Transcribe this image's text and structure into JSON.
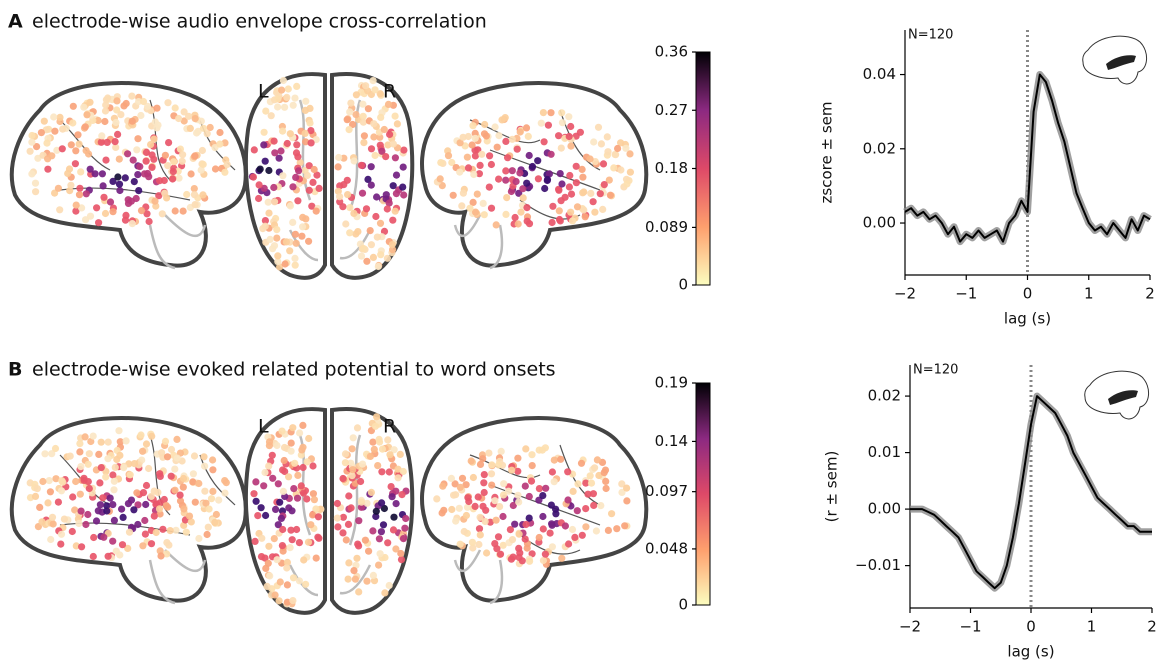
{
  "figure": {
    "panels": [
      {
        "letter": "A",
        "title": "electrode-wise audio envelope cross-correlation",
        "hemisphere_labels": [
          "L",
          "R"
        ],
        "colorbar": {
          "lim": [
            0,
            0.36
          ],
          "ticks": [
            0,
            0.089,
            0.18,
            0.27,
            0.36
          ]
        }
      },
      {
        "letter": "B",
        "title": "electrode-wise evoked related potential to word onsets",
        "hemisphere_labels": [
          "L",
          "R"
        ],
        "colorbar": {
          "lim": [
            0,
            0.19
          ],
          "ticks": [
            0,
            0.048,
            0.097,
            0.14,
            0.19
          ]
        }
      }
    ]
  },
  "chart_data": [
    {
      "type": "line",
      "annotation": "N=120",
      "xlabel": "lag (s)",
      "ylabel": "zscore ± sem",
      "color": "#000000",
      "x": [
        -2,
        -1.9,
        -1.8,
        -1.7,
        -1.6,
        -1.5,
        -1.4,
        -1.3,
        -1.2,
        -1.1,
        -1,
        -0.9,
        -0.8,
        -0.7,
        -0.6,
        -0.5,
        -0.4,
        -0.3,
        -0.2,
        -0.1,
        0,
        0.1,
        0.2,
        0.3,
        0.4,
        0.5,
        0.6,
        0.7,
        0.8,
        0.9,
        1,
        1.1,
        1.2,
        1.3,
        1.4,
        1.5,
        1.6,
        1.7,
        1.8,
        1.9,
        2
      ],
      "values": [
        0.003,
        0.004,
        0.002,
        0.003,
        0.001,
        0.002,
        0.0,
        -0.003,
        -0.001,
        -0.005,
        -0.003,
        -0.004,
        -0.002,
        -0.004,
        -0.003,
        -0.002,
        -0.005,
        0.0,
        0.002,
        0.006,
        0.003,
        0.03,
        0.04,
        0.038,
        0.033,
        0.027,
        0.022,
        0.015,
        0.008,
        0.004,
        0.0,
        -0.002,
        -0.001,
        -0.003,
        0.0,
        -0.002,
        -0.004,
        0.001,
        -0.002,
        0.002,
        0.001
      ],
      "xlim": [
        -2,
        2
      ],
      "ylim": [
        -0.014,
        0.052
      ],
      "xticks": [
        {
          "value": -2,
          "label": "−2"
        },
        {
          "value": -1,
          "label": "−1"
        },
        0,
        1,
        2
      ],
      "yticks": [
        {
          "value": 0,
          "label": "0.00"
        },
        {
          "value": 0.02,
          "label": "0.02"
        },
        {
          "value": 0.04,
          "label": "0.04"
        }
      ],
      "vlines": [
        0
      ]
    },
    {
      "type": "line",
      "annotation": "N=120",
      "xlabel": "lag (s)",
      "ylabel": "(r ± sem)",
      "color": "#000000",
      "x": [
        -2,
        -1.9,
        -1.8,
        -1.7,
        -1.6,
        -1.5,
        -1.4,
        -1.3,
        -1.2,
        -1.1,
        -1,
        -0.9,
        -0.8,
        -0.7,
        -0.6,
        -0.5,
        -0.4,
        -0.3,
        -0.2,
        -0.1,
        0,
        0.1,
        0.2,
        0.3,
        0.4,
        0.5,
        0.6,
        0.7,
        0.8,
        0.9,
        1,
        1.1,
        1.2,
        1.3,
        1.4,
        1.5,
        1.6,
        1.7,
        1.8,
        1.9,
        2
      ],
      "values": [
        0.0,
        0.0,
        0.0,
        -0.0005,
        -0.001,
        -0.002,
        -0.003,
        -0.004,
        -0.005,
        -0.007,
        -0.009,
        -0.011,
        -0.012,
        -0.013,
        -0.014,
        -0.013,
        -0.01,
        -0.005,
        0.001,
        0.008,
        0.015,
        0.02,
        0.019,
        0.018,
        0.017,
        0.015,
        0.013,
        0.01,
        0.008,
        0.006,
        0.004,
        0.002,
        0.001,
        0.0,
        -0.001,
        -0.002,
        -0.003,
        -0.003,
        -0.004,
        -0.004,
        -0.004
      ],
      "xlim": [
        -2,
        2
      ],
      "ylim": [
        -0.0175,
        0.0255
      ],
      "xticks": [
        {
          "value": -2,
          "label": "−2"
        },
        {
          "value": -1,
          "label": "−1"
        },
        0,
        1,
        2
      ],
      "yticks": [
        {
          "value": -0.01,
          "label": "−0.01"
        },
        {
          "value": 0,
          "label": "0.00"
        },
        {
          "value": 0.01,
          "label": "0.01"
        },
        {
          "value": 0.02,
          "label": "0.02"
        }
      ],
      "vlines": [
        0
      ]
    }
  ]
}
